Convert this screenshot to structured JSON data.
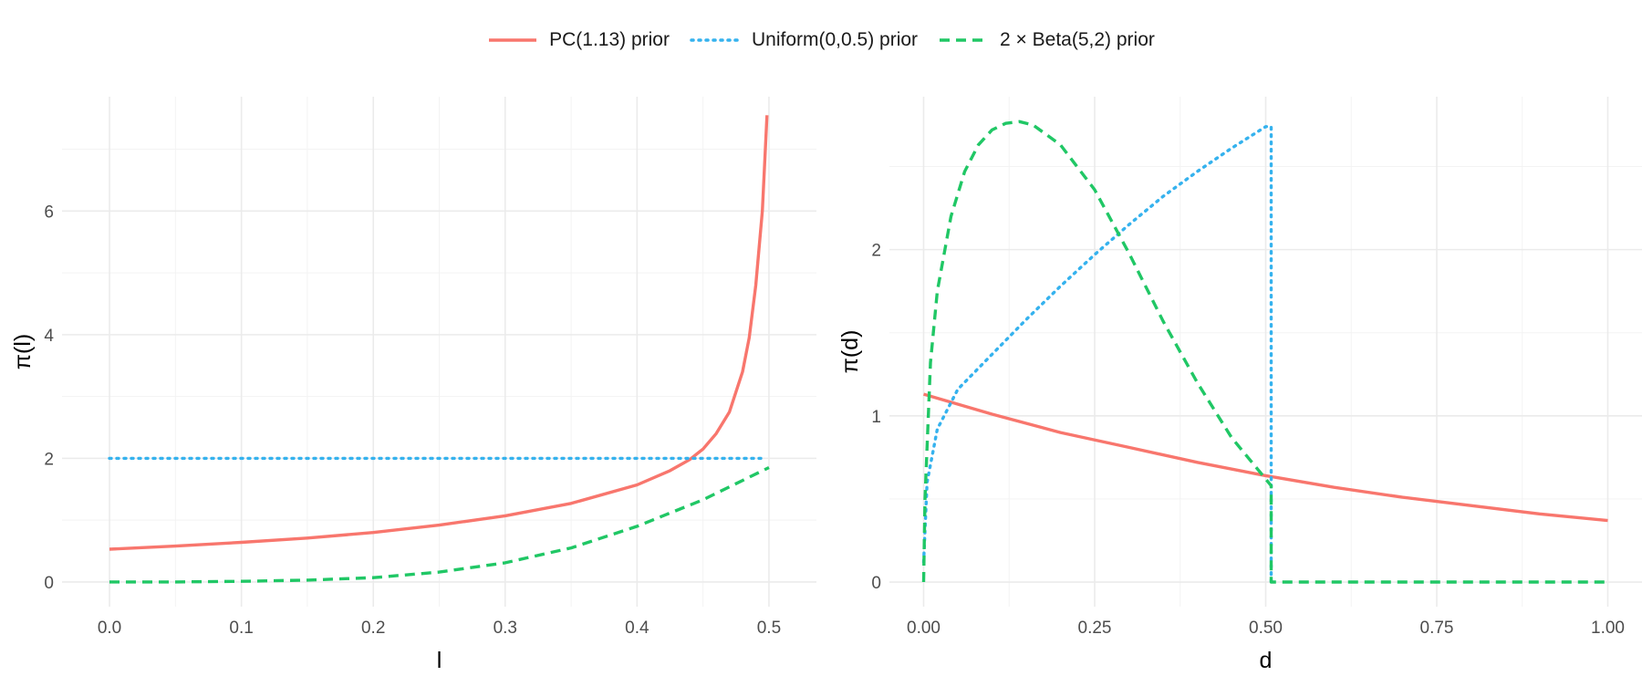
{
  "colors": {
    "pc": "#f8766d",
    "uniform": "#35b2ee",
    "beta": "#20c765",
    "grid_major": "#ebebeb",
    "grid_minor": "#f3f3f3"
  },
  "legend": [
    {
      "key": "pc",
      "label": "PC(1.13) prior",
      "linestyle": "solid"
    },
    {
      "key": "uniform",
      "label": "Uniform(0,0.5) prior",
      "linestyle": "dotted"
    },
    {
      "key": "beta",
      "label": "2 × Beta(5,2) prior",
      "linestyle": "dashed"
    }
  ],
  "chart_data": [
    {
      "type": "line",
      "xlabel": "l",
      "ylabel": "π(l)",
      "xlim": [
        0,
        0.5
      ],
      "ylim": [
        0,
        7.55
      ],
      "xticks": [
        0.0,
        0.1,
        0.2,
        0.3,
        0.4,
        0.5
      ],
      "xtick_labels": [
        "0.0",
        "0.1",
        "0.2",
        "0.3",
        "0.4",
        "0.5"
      ],
      "yticks": [
        0,
        2,
        4,
        6
      ],
      "ytick_labels": [
        "0",
        "2",
        "4",
        "6"
      ],
      "grid": true,
      "series": [
        {
          "name": "PC(1.13) prior",
          "key": "pc",
          "x": [
            0,
            0.05,
            0.1,
            0.15,
            0.2,
            0.25,
            0.3,
            0.35,
            0.4,
            0.425,
            0.44,
            0.45,
            0.46,
            0.47,
            0.48,
            0.485,
            0.49,
            0.495,
            0.4985
          ],
          "y": [
            0.53,
            0.58,
            0.64,
            0.71,
            0.8,
            0.92,
            1.07,
            1.27,
            1.57,
            1.8,
            1.98,
            2.15,
            2.4,
            2.75,
            3.4,
            3.95,
            4.8,
            6.0,
            7.55
          ]
        },
        {
          "name": "Uniform(0,0.5) prior",
          "key": "uniform",
          "x": [
            0,
            0.495
          ],
          "y": [
            2,
            2
          ]
        },
        {
          "name": "2 × Beta(5,2) prior",
          "key": "beta",
          "x": [
            0,
            0.05,
            0.1,
            0.15,
            0.2,
            0.25,
            0.3,
            0.35,
            0.4,
            0.45,
            0.5
          ],
          "y": [
            0,
            0.0,
            0.01,
            0.03,
            0.07,
            0.16,
            0.31,
            0.55,
            0.9,
            1.33,
            1.85
          ]
        }
      ]
    },
    {
      "type": "line",
      "xlabel": "d",
      "ylabel": "π(d)",
      "xlim": [
        0,
        1.0
      ],
      "ylim": [
        0,
        2.78
      ],
      "xticks": [
        0.0,
        0.25,
        0.5,
        0.75,
        1.0
      ],
      "xtick_labels": [
        "0.00",
        "0.25",
        "0.50",
        "0.75",
        "1.00"
      ],
      "yticks": [
        0,
        1,
        2
      ],
      "ytick_labels": [
        "0",
        "1",
        "2"
      ],
      "grid": true,
      "series": [
        {
          "name": "PC(1.13) prior",
          "key": "pc",
          "x": [
            0,
            0.1,
            0.2,
            0.3,
            0.4,
            0.5,
            0.6,
            0.7,
            0.8,
            0.9,
            1.0
          ],
          "y": [
            1.13,
            1.01,
            0.9,
            0.81,
            0.72,
            0.64,
            0.57,
            0.51,
            0.46,
            0.41,
            0.37
          ]
        },
        {
          "name": "Uniform(0,0.5) prior",
          "key": "uniform",
          "x": [
            0,
            0.005,
            0.02,
            0.05,
            0.1,
            0.15,
            0.2,
            0.25,
            0.3,
            0.35,
            0.4,
            0.45,
            0.5,
            0.508,
            0.508
          ],
          "y": [
            0.12,
            0.6,
            0.92,
            1.16,
            1.37,
            1.58,
            1.78,
            1.97,
            2.15,
            2.32,
            2.47,
            2.61,
            2.74,
            2.74,
            0
          ]
        },
        {
          "name": "2 × Beta(5,2) prior",
          "key": "beta",
          "x": [
            0,
            0.002,
            0.01,
            0.02,
            0.04,
            0.06,
            0.08,
            0.1,
            0.12,
            0.14,
            0.16,
            0.2,
            0.25,
            0.3,
            0.35,
            0.4,
            0.45,
            0.5,
            0.508,
            0.508,
            0.55,
            0.75,
            1.0
          ],
          "y": [
            0.0,
            0.5,
            1.32,
            1.75,
            2.2,
            2.47,
            2.63,
            2.72,
            2.76,
            2.77,
            2.75,
            2.63,
            2.36,
            1.98,
            1.57,
            1.2,
            0.87,
            0.62,
            0.58,
            0,
            0,
            0,
            0
          ]
        }
      ]
    }
  ]
}
